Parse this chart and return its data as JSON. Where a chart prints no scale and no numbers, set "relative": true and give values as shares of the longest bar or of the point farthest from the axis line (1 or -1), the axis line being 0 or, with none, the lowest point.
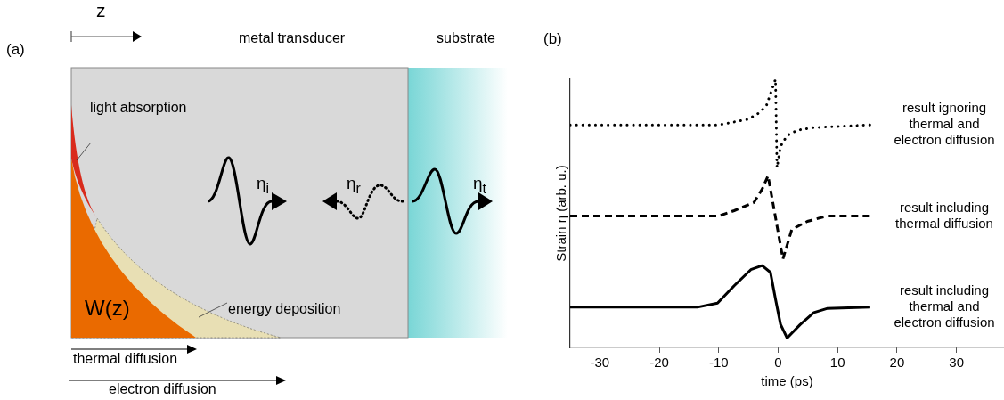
{
  "chart_data": [
    {
      "type": "other",
      "title": "(a)",
      "annotations": [
        "z",
        "metal transducer",
        "substrate",
        "light absorption",
        "η$_{i}$",
        "η$_{r}$",
        "η$_{t}$",
        "W(z)",
        "energy deposition",
        "thermal diffusion",
        "electron diffusion"
      ]
    },
    {
      "type": "line",
      "title": "(b)",
      "xlabel": "time (ps)",
      "ylabel": "Strain η (arb. u.)",
      "relative": true,
      "xlim": [
        -35,
        38
      ],
      "xticks": [
        -30,
        -20,
        -10,
        0,
        10,
        20,
        30
      ],
      "series": [
        {
          "name": "result ignoring thermal and electron diffusion",
          "color": "#000000",
          "line_style": "dotted",
          "x": [
            -35,
            -10,
            -5.2,
            -3.5,
            -2,
            -0.45,
            -0.2,
            0.4,
            1.5,
            3.2,
            6,
            15.5
          ],
          "values": [
            0.83,
            0.83,
            0.85,
            0.87,
            0.9,
            1.0,
            0.67,
            0.75,
            0.79,
            0.81,
            0.82,
            0.83
          ]
        },
        {
          "name": "result including thermal diffusion",
          "color": "#000000",
          "line_style": "dashed",
          "x": [
            -35,
            -10,
            -7.4,
            -4.1,
            -2.7,
            -1.7,
            0.8,
            2.3,
            4.9,
            8.2,
            15.5
          ],
          "values": [
            0.49,
            0.49,
            0.51,
            0.54,
            0.59,
            0.64,
            0.33,
            0.44,
            0.47,
            0.49,
            0.49
          ]
        },
        {
          "name": "result including thermal and electron diffusion",
          "color": "#000000",
          "line_style": "solid",
          "x": [
            -35,
            -13.6,
            -10.2,
            -7.4,
            -4.6,
            -2.7,
            -1.3,
            -0.45,
            0.4,
            1.5,
            3.7,
            6,
            8.2,
            15.5
          ],
          "values": [
            0.15,
            0.15,
            0.165,
            0.23,
            0.29,
            0.305,
            0.28,
            0.18,
            0.086,
            0.035,
            0.085,
            0.13,
            0.145,
            0.15
          ]
        }
      ]
    }
  ]
}
